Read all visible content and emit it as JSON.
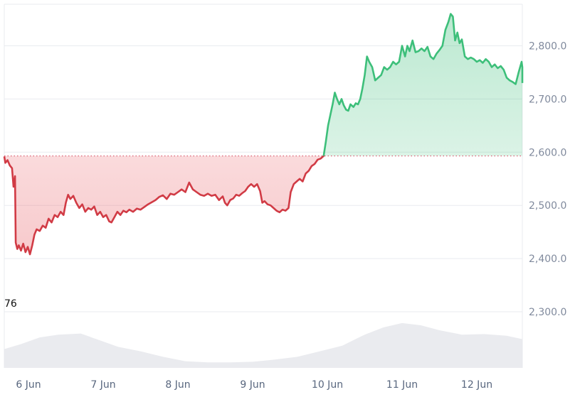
{
  "chart_data": {
    "type": "line",
    "baseline": 2593,
    "ylim": [
      2230,
      2880
    ],
    "y_ticks": [
      {
        "value": 2300,
        "label": "2,300.0"
      },
      {
        "value": 2400,
        "label": "2,400.0"
      },
      {
        "value": 2500,
        "label": "2,500.0"
      },
      {
        "value": 2600,
        "label": "2,600.0"
      },
      {
        "value": 2700,
        "label": "2,700.0"
      },
      {
        "value": 2800,
        "label": "2,800.0"
      }
    ],
    "x_ticks": [
      {
        "day": 0,
        "label": "6 Jun"
      },
      {
        "day": 1,
        "label": "7 Jun"
      },
      {
        "day": 2,
        "label": "8 Jun"
      },
      {
        "day": 3,
        "label": "9 Jun"
      },
      {
        "day": 4,
        "label": "10 Jun"
      },
      {
        "day": 5,
        "label": "11 Jun"
      },
      {
        "day": 6,
        "label": "12 Jun"
      }
    ],
    "x_range_days": [
      -0.33,
      6.67
    ],
    "series": [
      {
        "values": [
          [
            -0.33,
            2592
          ],
          [
            -0.31,
            2580
          ],
          [
            -0.28,
            2585
          ],
          [
            -0.25,
            2575
          ],
          [
            -0.22,
            2570
          ],
          [
            -0.2,
            2535
          ],
          [
            -0.18,
            2555
          ],
          [
            -0.17,
            2430
          ],
          [
            -0.15,
            2418
          ],
          [
            -0.13,
            2425
          ],
          [
            -0.1,
            2415
          ],
          [
            -0.07,
            2428
          ],
          [
            -0.04,
            2412
          ],
          [
            -0.01,
            2422
          ],
          [
            0.02,
            2408
          ],
          [
            0.05,
            2425
          ],
          [
            0.08,
            2445
          ],
          [
            0.11,
            2455
          ],
          [
            0.15,
            2452
          ],
          [
            0.19,
            2462
          ],
          [
            0.23,
            2458
          ],
          [
            0.27,
            2475
          ],
          [
            0.31,
            2468
          ],
          [
            0.35,
            2482
          ],
          [
            0.39,
            2478
          ],
          [
            0.43,
            2488
          ],
          [
            0.47,
            2482
          ],
          [
            0.5,
            2505
          ],
          [
            0.53,
            2520
          ],
          [
            0.56,
            2512
          ],
          [
            0.6,
            2518
          ],
          [
            0.64,
            2505
          ],
          [
            0.68,
            2495
          ],
          [
            0.72,
            2502
          ],
          [
            0.76,
            2488
          ],
          [
            0.8,
            2495
          ],
          [
            0.84,
            2492
          ],
          [
            0.88,
            2498
          ],
          [
            0.92,
            2482
          ],
          [
            0.96,
            2488
          ],
          [
            1.0,
            2478
          ],
          [
            1.04,
            2482
          ],
          [
            1.08,
            2470
          ],
          [
            1.11,
            2468
          ],
          [
            1.15,
            2478
          ],
          [
            1.19,
            2488
          ],
          [
            1.23,
            2482
          ],
          [
            1.27,
            2490
          ],
          [
            1.31,
            2487
          ],
          [
            1.35,
            2492
          ],
          [
            1.4,
            2488
          ],
          [
            1.45,
            2494
          ],
          [
            1.5,
            2492
          ],
          [
            1.55,
            2497
          ],
          [
            1.6,
            2502
          ],
          [
            1.65,
            2506
          ],
          [
            1.7,
            2510
          ],
          [
            1.75,
            2516
          ],
          [
            1.8,
            2519
          ],
          [
            1.85,
            2512
          ],
          [
            1.9,
            2522
          ],
          [
            1.95,
            2520
          ],
          [
            2.0,
            2525
          ],
          [
            2.05,
            2530
          ],
          [
            2.1,
            2525
          ],
          [
            2.15,
            2543
          ],
          [
            2.2,
            2530
          ],
          [
            2.25,
            2525
          ],
          [
            2.3,
            2520
          ],
          [
            2.35,
            2518
          ],
          [
            2.4,
            2522
          ],
          [
            2.45,
            2518
          ],
          [
            2.5,
            2520
          ],
          [
            2.55,
            2510
          ],
          [
            2.6,
            2517
          ],
          [
            2.63,
            2505
          ],
          [
            2.66,
            2500
          ],
          [
            2.7,
            2510
          ],
          [
            2.74,
            2513
          ],
          [
            2.78,
            2520
          ],
          [
            2.82,
            2518
          ],
          [
            2.86,
            2523
          ],
          [
            2.9,
            2527
          ],
          [
            2.94,
            2535
          ],
          [
            2.98,
            2540
          ],
          [
            3.02,
            2535
          ],
          [
            3.06,
            2540
          ],
          [
            3.1,
            2527
          ],
          [
            3.13,
            2505
          ],
          [
            3.16,
            2508
          ],
          [
            3.2,
            2502
          ],
          [
            3.24,
            2500
          ],
          [
            3.28,
            2495
          ],
          [
            3.32,
            2490
          ],
          [
            3.36,
            2487
          ],
          [
            3.4,
            2492
          ],
          [
            3.44,
            2490
          ],
          [
            3.48,
            2495
          ],
          [
            3.51,
            2525
          ],
          [
            3.55,
            2540
          ],
          [
            3.59,
            2545
          ],
          [
            3.63,
            2550
          ],
          [
            3.67,
            2545
          ],
          [
            3.71,
            2560
          ],
          [
            3.75,
            2565
          ],
          [
            3.79,
            2574
          ],
          [
            3.83,
            2578
          ],
          [
            3.87,
            2586
          ],
          [
            3.91,
            2588
          ],
          [
            3.95,
            2593
          ],
          [
            3.98,
            2620
          ],
          [
            4.01,
            2650
          ],
          [
            4.04,
            2670
          ],
          [
            4.07,
            2690
          ],
          [
            4.1,
            2712
          ],
          [
            4.13,
            2700
          ],
          [
            4.16,
            2690
          ],
          [
            4.19,
            2700
          ],
          [
            4.22,
            2688
          ],
          [
            4.25,
            2680
          ],
          [
            4.28,
            2678
          ],
          [
            4.31,
            2690
          ],
          [
            4.35,
            2685
          ],
          [
            4.38,
            2692
          ],
          [
            4.41,
            2690
          ],
          [
            4.44,
            2700
          ],
          [
            4.47,
            2720
          ],
          [
            4.5,
            2745
          ],
          [
            4.53,
            2780
          ],
          [
            4.56,
            2770
          ],
          [
            4.6,
            2760
          ],
          [
            4.64,
            2735
          ],
          [
            4.68,
            2740
          ],
          [
            4.72,
            2745
          ],
          [
            4.76,
            2760
          ],
          [
            4.8,
            2755
          ],
          [
            4.84,
            2760
          ],
          [
            4.88,
            2770
          ],
          [
            4.92,
            2765
          ],
          [
            4.96,
            2770
          ],
          [
            5.0,
            2800
          ],
          [
            5.04,
            2780
          ],
          [
            5.07,
            2800
          ],
          [
            5.1,
            2790
          ],
          [
            5.14,
            2810
          ],
          [
            5.18,
            2788
          ],
          [
            5.22,
            2790
          ],
          [
            5.26,
            2795
          ],
          [
            5.3,
            2790
          ],
          [
            5.34,
            2798
          ],
          [
            5.38,
            2780
          ],
          [
            5.42,
            2775
          ],
          [
            5.46,
            2785
          ],
          [
            5.5,
            2792
          ],
          [
            5.54,
            2800
          ],
          [
            5.58,
            2830
          ],
          [
            5.62,
            2845
          ],
          [
            5.65,
            2860
          ],
          [
            5.68,
            2855
          ],
          [
            5.71,
            2810
          ],
          [
            5.74,
            2825
          ],
          [
            5.77,
            2805
          ],
          [
            5.8,
            2812
          ],
          [
            5.84,
            2780
          ],
          [
            5.88,
            2775
          ],
          [
            5.92,
            2778
          ],
          [
            5.96,
            2775
          ],
          [
            6.0,
            2770
          ],
          [
            6.04,
            2773
          ],
          [
            6.08,
            2768
          ],
          [
            6.12,
            2775
          ],
          [
            6.16,
            2770
          ],
          [
            6.2,
            2760
          ],
          [
            6.24,
            2765
          ],
          [
            6.28,
            2758
          ],
          [
            6.32,
            2762
          ],
          [
            6.36,
            2755
          ],
          [
            6.4,
            2740
          ],
          [
            6.44,
            2735
          ],
          [
            6.48,
            2732
          ],
          [
            6.52,
            2728
          ],
          [
            6.56,
            2750
          ],
          [
            6.6,
            2770
          ],
          [
            6.63,
            2760
          ],
          [
            6.67,
            2730
          ]
        ]
      }
    ],
    "volume": {
      "label": "76",
      "values": [
        [
          -0.33,
          0.34
        ],
        [
          -0.1,
          0.43
        ],
        [
          0.15,
          0.55
        ],
        [
          0.4,
          0.6
        ],
        [
          0.7,
          0.62
        ],
        [
          0.95,
          0.5
        ],
        [
          1.2,
          0.38
        ],
        [
          1.5,
          0.3
        ],
        [
          1.8,
          0.2
        ],
        [
          2.1,
          0.12
        ],
        [
          2.4,
          0.1
        ],
        [
          2.7,
          0.1
        ],
        [
          3.0,
          0.11
        ],
        [
          3.3,
          0.15
        ],
        [
          3.6,
          0.2
        ],
        [
          3.9,
          0.3
        ],
        [
          4.2,
          0.4
        ],
        [
          4.5,
          0.6
        ],
        [
          4.75,
          0.73
        ],
        [
          5.0,
          0.81
        ],
        [
          5.25,
          0.77
        ],
        [
          5.5,
          0.68
        ],
        [
          5.8,
          0.6
        ],
        [
          6.1,
          0.61
        ],
        [
          6.4,
          0.58
        ],
        [
          6.67,
          0.52
        ]
      ]
    },
    "colors": {
      "up": "#3dbf7a",
      "down": "#d13b45",
      "up_fill": "#3dbf7a",
      "down_fill": "#e8585f",
      "baseline": "#d9546a",
      "volume": "#e6e8ec"
    },
    "grid": true,
    "legend": "none"
  }
}
